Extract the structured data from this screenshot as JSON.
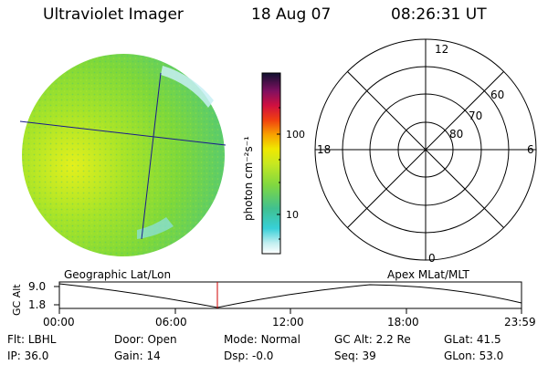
{
  "header": {
    "title": "Ultraviolet Imager",
    "date": "18 Aug 07",
    "time": "08:26:31 UT"
  },
  "colorbar": {
    "unit_label": "photon cm⁻²s⁻¹",
    "ticks": [
      "100",
      "10"
    ]
  },
  "polar": {
    "mlt_labels": {
      "top": "12",
      "right": "6",
      "bottom": "0",
      "left": "18"
    },
    "lat_labels": [
      "60",
      "70",
      "80"
    ]
  },
  "timeline": {
    "left_label": "Geographic Lat/Lon",
    "right_label": "Apex MLat/MLT",
    "y_axis_label": "GC Alt",
    "y_max": "9.0",
    "y_min": "1.8",
    "x_ticks": [
      "00:00",
      "06:00",
      "12:00",
      "18:00",
      "23:59"
    ],
    "marker_color": "#d00000"
  },
  "status": {
    "flt_label": "Flt:",
    "flt_value": "LBHL",
    "ip_label": "IP:",
    "ip_value": "36.0",
    "door_label": "Door:",
    "door_value": "Open",
    "gain_label": "Gain:",
    "gain_value": "14",
    "mode_label": "Mode:",
    "mode_value": "Normal",
    "dsp_label": "Dsp:",
    "dsp_value": "-0.0",
    "gcalt_label": "GC Alt:",
    "gcalt_value": "2.2 Re",
    "seq_label": "Seq:",
    "seq_value": "39",
    "glat_label": "GLat:",
    "glat_value": "41.5",
    "glon_label": "GLon:",
    "glon_value": "53.0"
  }
}
